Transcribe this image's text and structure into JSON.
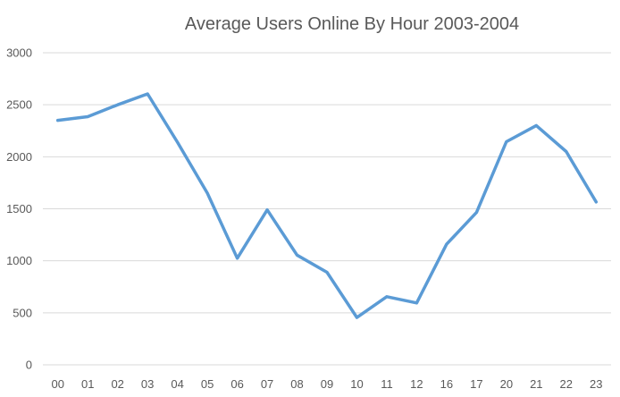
{
  "chart_data": {
    "type": "line",
    "title": "Average Users Online By Hour 2003-2004",
    "xlabel": "",
    "ylabel": "",
    "categories": [
      "00",
      "01",
      "02",
      "03",
      "04",
      "05",
      "06",
      "07",
      "08",
      "09",
      "10",
      "11",
      "12",
      "16",
      "17",
      "20",
      "21",
      "22",
      "23"
    ],
    "series": [
      {
        "values": [
          2350,
          2385,
          2500,
          2605,
          2140,
          1650,
          1025,
          1490,
          1055,
          890,
          455,
          655,
          595,
          1160,
          1465,
          2145,
          2300,
          2050,
          1565
        ],
        "color": "#5b9bd5"
      }
    ],
    "ylim": [
      0,
      3000
    ],
    "yticks": [
      0,
      500,
      1000,
      1500,
      2000,
      2500,
      3000
    ],
    "grid": true,
    "legend": "none"
  }
}
